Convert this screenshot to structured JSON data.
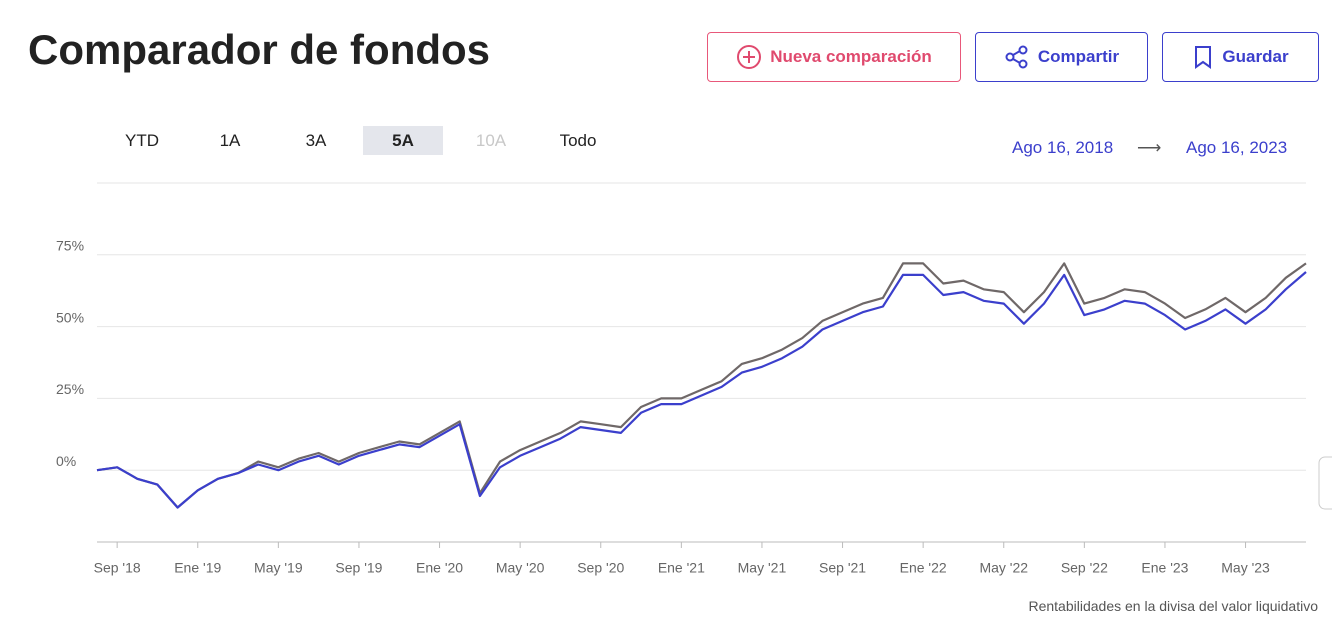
{
  "header": {
    "title": "Comparador de fondos",
    "buttons": [
      "Nueva comparación",
      "Compartir",
      "Guardar"
    ]
  },
  "range_tabs": {
    "items": [
      "YTD",
      "1A",
      "3A",
      "5A",
      "10A",
      "Todo"
    ],
    "selected": 3,
    "disabled": 4
  },
  "date_range": {
    "start": "Ago 16, 2018",
    "arrow": "⟶",
    "end": "Ago 16, 2023"
  },
  "chart_data": {
    "type": "line",
    "categories": [
      null,
      "Sep '18",
      null,
      null,
      null,
      "Ene '19",
      null,
      null,
      null,
      "May '19",
      null,
      null,
      null,
      "Sep '19",
      null,
      null,
      null,
      "Ene '20",
      null,
      null,
      null,
      "May '20",
      null,
      null,
      null,
      "Sep '20",
      null,
      null,
      null,
      "Ene '21",
      null,
      null,
      null,
      "May '21",
      null,
      null,
      null,
      "Sep '21",
      null,
      null,
      null,
      "Ene '22",
      null,
      null,
      null,
      "May '22",
      null,
      null,
      null,
      "Sep '22",
      null,
      null,
      null,
      "Ene '23",
      null,
      null,
      null,
      "May '23",
      null,
      null,
      null
    ],
    "series": [
      {
        "color": "#6f6868",
        "values": [
          0,
          1,
          -3,
          -5,
          -13,
          -7,
          -3,
          -1,
          3,
          1,
          4,
          6,
          3,
          6,
          8,
          10,
          9,
          13,
          17,
          -8,
          3,
          7,
          10,
          13,
          17,
          16,
          15,
          22,
          25,
          25,
          28,
          31,
          37,
          39,
          42,
          46,
          52,
          55,
          58,
          60,
          72,
          72,
          65,
          66,
          63,
          62,
          55,
          62,
          72,
          58,
          60,
          63,
          62,
          58,
          53,
          56,
          60,
          55,
          60,
          67,
          72
        ]
      },
      {
        "color": "#3b3fcc",
        "values": [
          0,
          1,
          -3,
          -5,
          -13,
          -7,
          -3,
          -1,
          2,
          0,
          3,
          5,
          2,
          5,
          7,
          9,
          8,
          12,
          16,
          -9,
          1,
          5,
          8,
          11,
          15,
          14,
          13,
          20,
          23,
          23,
          26,
          29,
          34,
          36,
          39,
          43,
          49,
          52,
          55,
          57,
          68,
          68,
          61,
          62,
          59,
          58,
          51,
          58,
          68,
          54,
          56,
          59,
          58,
          54,
          49,
          52,
          56,
          51,
          56,
          63,
          69
        ]
      }
    ],
    "ylim": [
      -25,
      100
    ],
    "yticks": [
      {
        "value": 0,
        "label": "0%"
      },
      {
        "value": 25,
        "label": "25%"
      },
      {
        "value": 50,
        "label": "50%"
      },
      {
        "value": 75,
        "label": "75%"
      }
    ],
    "grid": true
  },
  "footnote": "Rentabilidades en la divisa del valor liquidativo"
}
